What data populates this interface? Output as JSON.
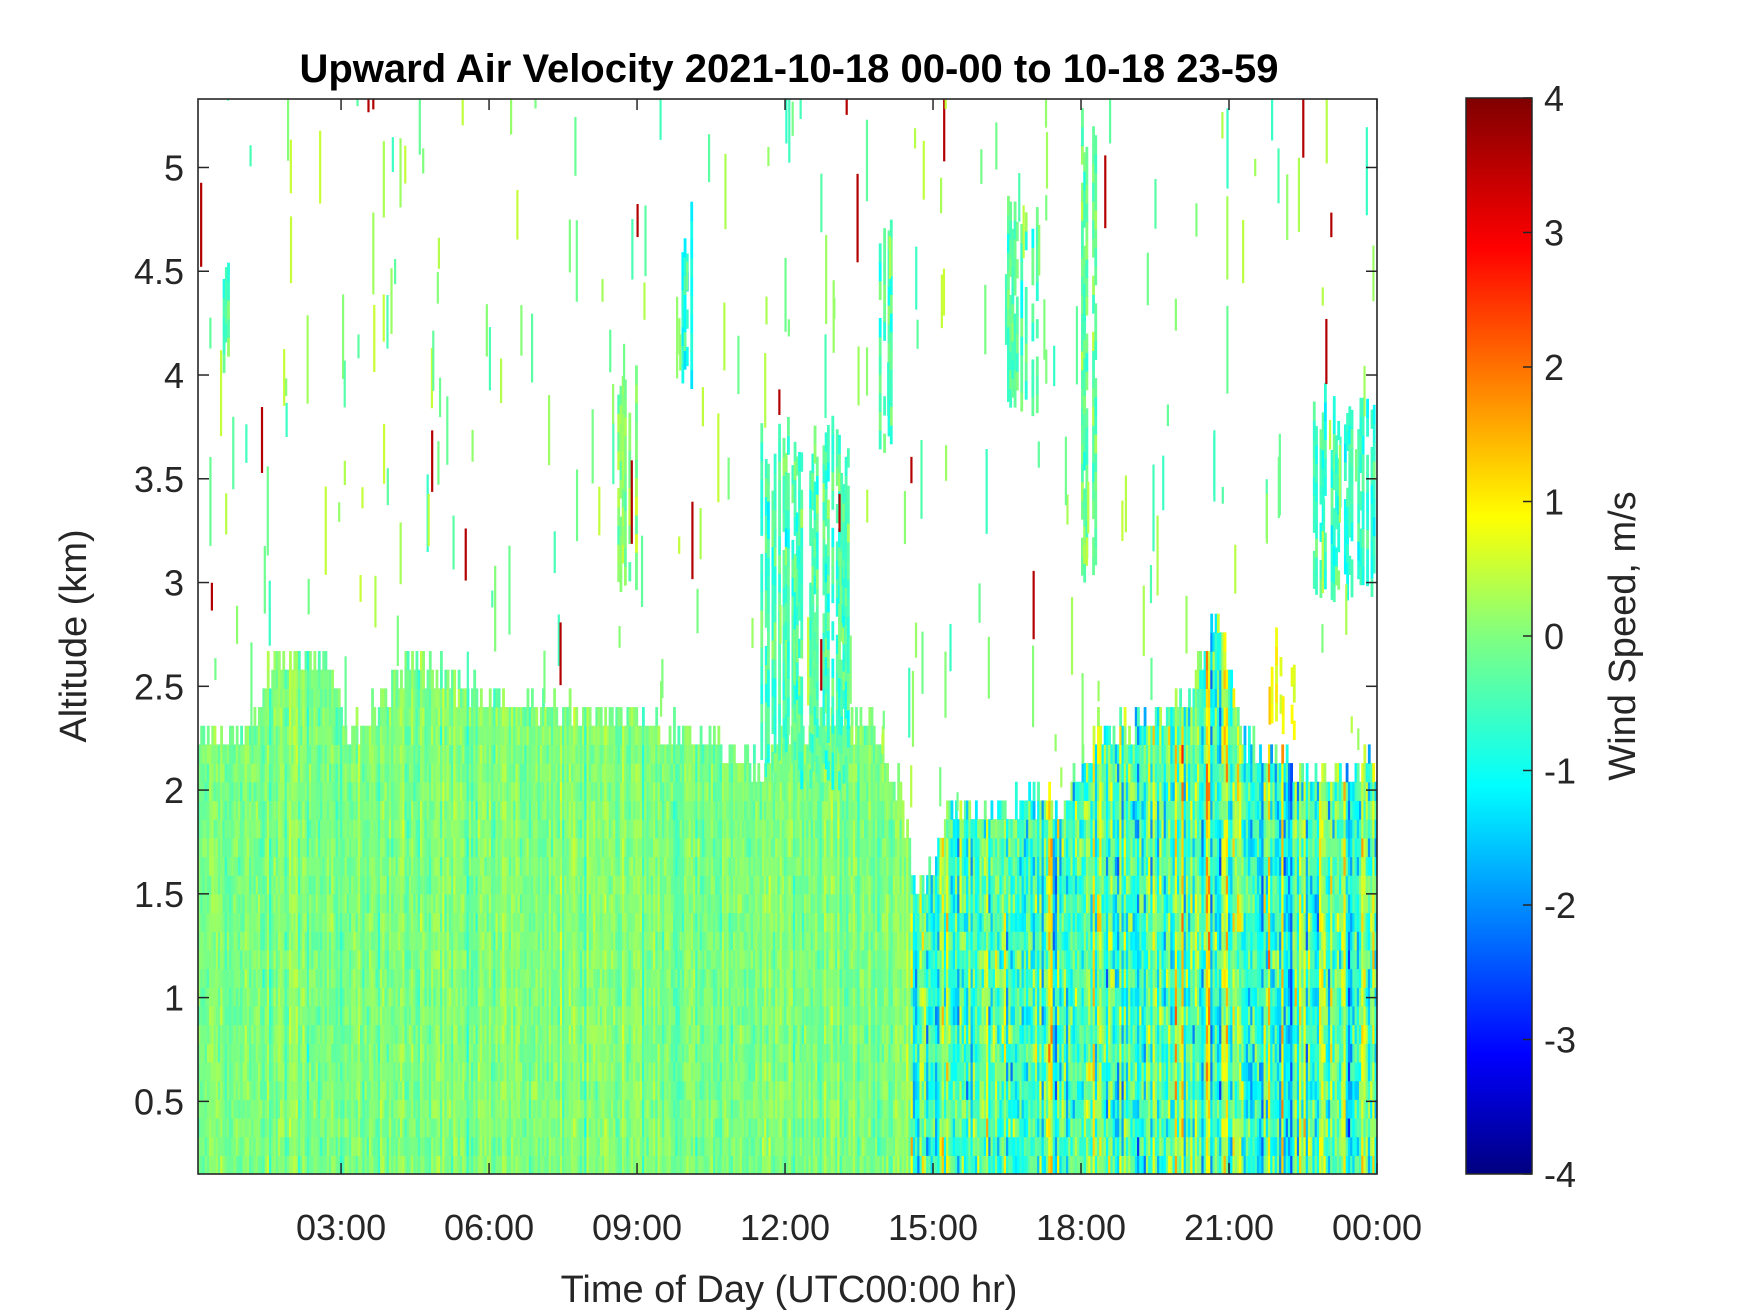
{
  "chart_data": {
    "type": "heatmap",
    "title": "Upward Air Velocity 2021-10-18 00-00 to 10-18 23-59",
    "xlabel": "Time of Day (UTC00:00 hr)",
    "ylabel": "Altitude (km)",
    "colorbar_label": "Wind Speed, m/s",
    "colormap": "jet",
    "x_unit": "hours UTC",
    "xlim": [
      0.1,
      24
    ],
    "ylim": [
      0.15,
      5.33
    ],
    "clim": [
      -4,
      4
    ],
    "x_ticks": [
      {
        "value": 3,
        "label": "03:00"
      },
      {
        "value": 6,
        "label": "06:00"
      },
      {
        "value": 9,
        "label": "09:00"
      },
      {
        "value": 12,
        "label": "12:00"
      },
      {
        "value": 15,
        "label": "15:00"
      },
      {
        "value": 18,
        "label": "18:00"
      },
      {
        "value": 21,
        "label": "21:00"
      },
      {
        "value": 24,
        "label": "00:00"
      }
    ],
    "y_ticks": [
      {
        "value": 0.5,
        "label": "0.5"
      },
      {
        "value": 1,
        "label": "1"
      },
      {
        "value": 1.5,
        "label": "1.5"
      },
      {
        "value": 2,
        "label": "2"
      },
      {
        "value": 2.5,
        "label": "2.5"
      },
      {
        "value": 3,
        "label": "3"
      },
      {
        "value": 3.5,
        "label": "3.5"
      },
      {
        "value": 4,
        "label": "4"
      },
      {
        "value": 4.5,
        "label": "4.5"
      },
      {
        "value": 5,
        "label": "5"
      }
    ],
    "colorbar_ticks": [
      {
        "value": 4,
        "label": "4"
      },
      {
        "value": 3,
        "label": "3"
      },
      {
        "value": 2,
        "label": "2"
      },
      {
        "value": 1,
        "label": "1"
      },
      {
        "value": 0,
        "label": "0"
      },
      {
        "value": -1,
        "label": "-1"
      },
      {
        "value": -2,
        "label": "-2"
      },
      {
        "value": -3,
        "label": "-3"
      },
      {
        "value": -4,
        "label": "-4"
      }
    ],
    "data_top_km": [
      {
        "t": 0.1,
        "top": 2.2
      },
      {
        "t": 1.2,
        "top": 2.25
      },
      {
        "t": 1.5,
        "top": 2.55
      },
      {
        "t": 2.7,
        "top": 2.6
      },
      {
        "t": 3.1,
        "top": 2.2
      },
      {
        "t": 4.5,
        "top": 2.6
      },
      {
        "t": 5.3,
        "top": 2.45
      },
      {
        "t": 8.0,
        "top": 2.3
      },
      {
        "t": 9.0,
        "top": 2.3
      },
      {
        "t": 10.5,
        "top": 2.2
      },
      {
        "t": 11.5,
        "top": 2.05
      },
      {
        "t": 12.5,
        "top": 2.3
      },
      {
        "t": 13.6,
        "top": 2.3
      },
      {
        "t": 14.3,
        "top": 2.0
      },
      {
        "t": 14.6,
        "top": 1.5
      },
      {
        "t": 15.0,
        "top": 1.6
      },
      {
        "t": 15.3,
        "top": 1.85
      },
      {
        "t": 16.3,
        "top": 1.85
      },
      {
        "t": 17.8,
        "top": 1.95
      },
      {
        "t": 18.3,
        "top": 2.25
      },
      {
        "t": 19.0,
        "top": 2.25
      },
      {
        "t": 20.2,
        "top": 2.4
      },
      {
        "t": 20.7,
        "top": 2.8
      },
      {
        "t": 21.3,
        "top": 2.2
      },
      {
        "t": 22.0,
        "top": 2.1
      },
      {
        "t": 22.8,
        "top": 2.05
      },
      {
        "t": 24.0,
        "top": 2.05
      }
    ],
    "velocity_regimes": [
      {
        "t_start": 0.1,
        "t_end": 14.5,
        "mean_ms": 0.0,
        "spread_ms": 0.5
      },
      {
        "t_start": 14.5,
        "t_end": 24.0,
        "mean_ms": -0.3,
        "spread_ms": 1.6
      }
    ],
    "features": [
      {
        "kind": "column",
        "t_start": 11.5,
        "t_end": 13.3,
        "alt_min": 2.0,
        "alt_max": 3.8,
        "mean_ms": -0.4
      },
      {
        "kind": "column",
        "t_start": 16.5,
        "t_end": 17.1,
        "alt_min": 3.8,
        "alt_max": 4.9,
        "mean_ms": -0.3
      },
      {
        "kind": "column",
        "t_start": 22.7,
        "t_end": 24.0,
        "alt_min": 2.9,
        "alt_max": 3.9,
        "mean_ms": -0.6
      },
      {
        "kind": "column",
        "t_start": 21.8,
        "t_end": 22.3,
        "alt_min": 2.2,
        "alt_max": 2.7,
        "mean_ms": 1.0
      },
      {
        "kind": "column",
        "t_start": 0.6,
        "t_end": 0.8,
        "alt_min": 4.0,
        "alt_max": 4.6,
        "mean_ms": -0.4
      },
      {
        "kind": "column",
        "t_start": 13.9,
        "t_end": 14.2,
        "alt_min": 3.6,
        "alt_max": 4.8,
        "mean_ms": -0.4
      },
      {
        "kind": "column",
        "t_start": 9.9,
        "t_end": 10.1,
        "alt_min": 3.9,
        "alt_max": 4.8,
        "mean_ms": -0.8
      },
      {
        "kind": "column",
        "t_start": 18.0,
        "t_end": 18.3,
        "alt_min": 3.0,
        "alt_max": 5.3,
        "mean_ms": -0.2
      },
      {
        "kind": "column",
        "t_start": 8.6,
        "t_end": 9.0,
        "alt_min": 2.9,
        "alt_max": 4.0,
        "mean_ms": 0.1
      }
    ]
  }
}
